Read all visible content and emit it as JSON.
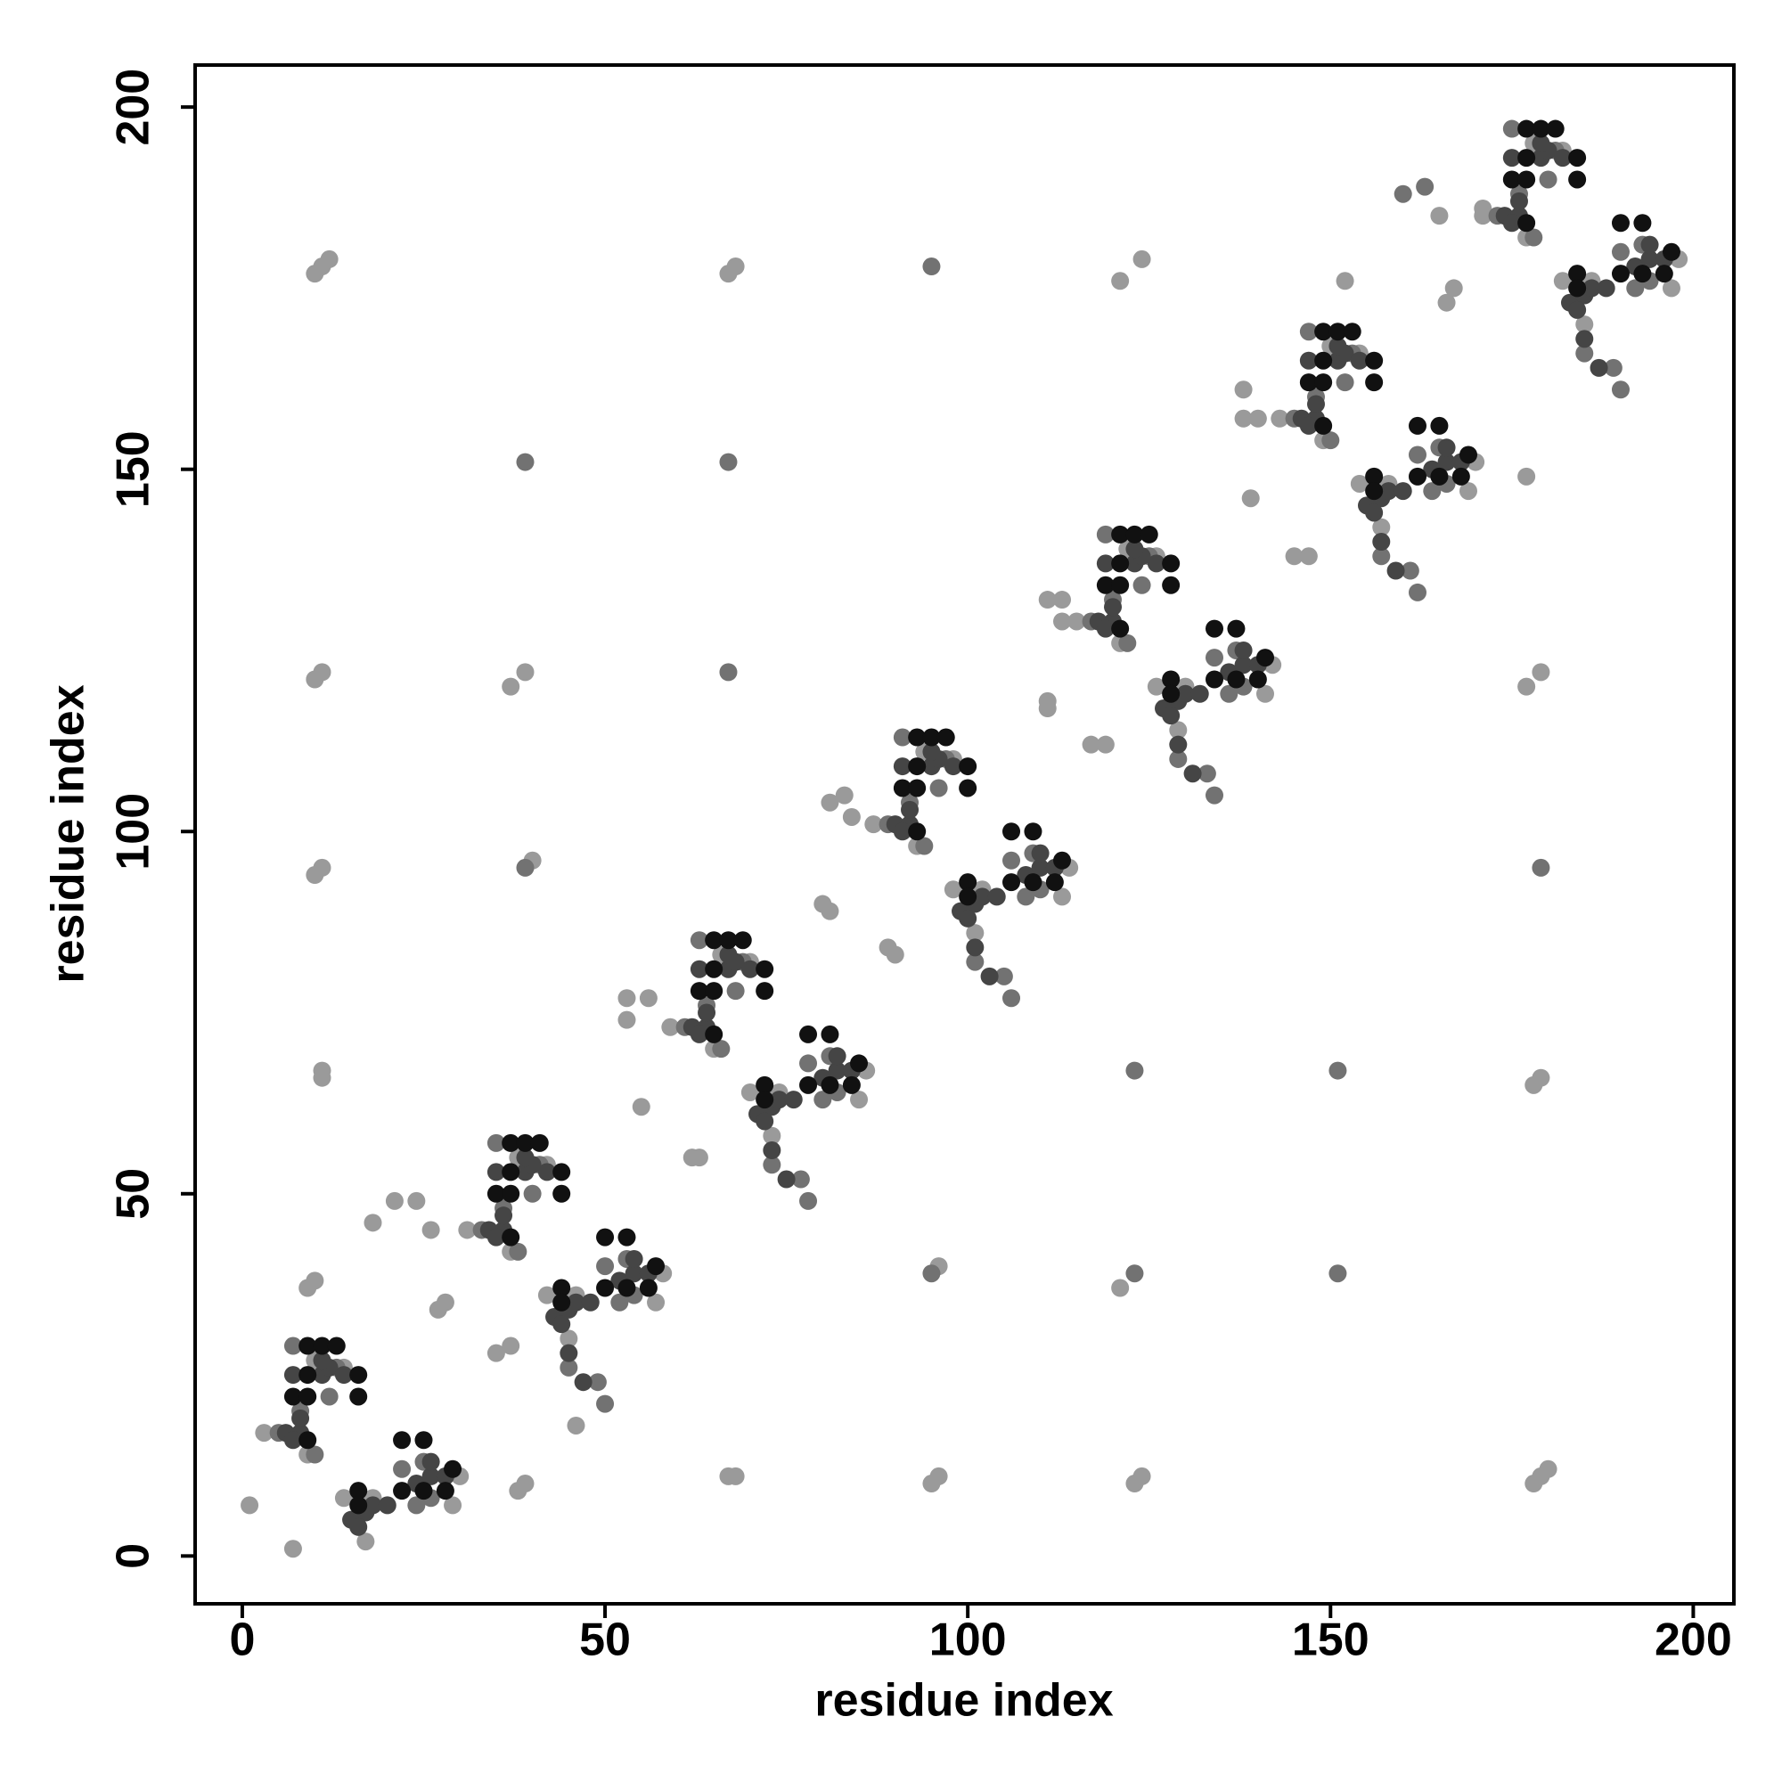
{
  "chart_data": {
    "type": "scatter",
    "xlabel": "residue index",
    "ylabel": "residue index",
    "xlim": [
      -6.5,
      205.6
    ],
    "ylim": [
      -6.6,
      205.8
    ],
    "xticks": [
      0,
      50,
      100,
      150,
      200
    ],
    "yticks": [
      0,
      50,
      100,
      150,
      200
    ],
    "series": [
      {
        "color": "#9a9a9a",
        "x": [
          3,
          9,
          10,
          14,
          31,
          37,
          38,
          42,
          59,
          65,
          66,
          70,
          87,
          93,
          94,
          98,
          115,
          121,
          122,
          126,
          143,
          149,
          150,
          154,
          171,
          177,
          178,
          182,
          14,
          17,
          18,
          29,
          30,
          42,
          45,
          46,
          57,
          58,
          70,
          73,
          74,
          85,
          86,
          98,
          101,
          102,
          113,
          114,
          126,
          129,
          130,
          141,
          142,
          154,
          157,
          158,
          169,
          170,
          182,
          185,
          186,
          197,
          198,
          46,
          1,
          7,
          9,
          10,
          11,
          12,
          10,
          67,
          68,
          121,
          124,
          11,
          10,
          37,
          39,
          10,
          11,
          40,
          11,
          11,
          179,
          178,
          96,
          121,
          67,
          68,
          95,
          96,
          123,
          124,
          178,
          179,
          180,
          177,
          177,
          179,
          152,
          38,
          39,
          35,
          37,
          27,
          28,
          21,
          18,
          24,
          26,
          55,
          53,
          56,
          53,
          62,
          63,
          83,
          81,
          84,
          80,
          81,
          89,
          90,
          111,
          113,
          113,
          117,
          119,
          111,
          111,
          138,
          138,
          140,
          139,
          145,
          147,
          166,
          167,
          165,
          171
        ],
        "values": [
          17,
          14,
          27,
          26,
          45,
          42,
          55,
          54,
          73,
          70,
          83,
          82,
          101,
          98,
          111,
          110,
          129,
          126,
          139,
          138,
          157,
          154,
          167,
          166,
          185,
          182,
          195,
          194,
          8,
          2,
          8,
          7,
          11,
          36,
          30,
          36,
          35,
          39,
          64,
          58,
          64,
          63,
          67,
          92,
          86,
          92,
          91,
          95,
          120,
          114,
          120,
          119,
          123,
          148,
          142,
          148,
          147,
          151,
          176,
          170,
          176,
          175,
          179,
          18,
          7,
          1,
          37,
          38,
          178,
          179,
          177,
          177,
          178,
          176,
          179,
          122,
          121,
          120,
          122,
          94,
          95,
          96,
          67,
          66,
          66,
          65,
          40,
          37,
          11,
          11,
          10,
          11,
          10,
          11,
          10,
          11,
          12,
          149,
          120,
          122,
          176,
          9,
          10,
          28,
          29,
          34,
          35,
          49,
          46,
          49,
          45,
          62,
          77,
          77,
          74,
          55,
          55,
          105,
          104,
          102,
          90,
          89,
          84,
          83,
          132,
          132,
          129,
          112,
          112,
          118,
          117,
          161,
          157,
          157,
          146,
          138,
          138,
          173,
          175,
          185,
          186
        ]
      },
      {
        "color": "#727272",
        "x": [
          5,
          10,
          7,
          12,
          13,
          8,
          33,
          38,
          35,
          40,
          41,
          36,
          61,
          66,
          63,
          68,
          69,
          64,
          89,
          94,
          91,
          96,
          97,
          92,
          117,
          122,
          119,
          124,
          125,
          120,
          145,
          150,
          147,
          152,
          153,
          148,
          173,
          178,
          175,
          180,
          181,
          176,
          22,
          25,
          26,
          24,
          50,
          53,
          54,
          52,
          78,
          81,
          82,
          80,
          106,
          109,
          110,
          108,
          134,
          137,
          138,
          136,
          162,
          165,
          166,
          164,
          190,
          193,
          194,
          192,
          45,
          49,
          50,
          73,
          77,
          78,
          101,
          105,
          106,
          129,
          133,
          134,
          157,
          161,
          162,
          185,
          189,
          190,
          95,
          39,
          67,
          67,
          39,
          123,
          151,
          95,
          123,
          151,
          179,
          163,
          160
        ],
        "values": [
          17,
          14,
          29,
          22,
          26,
          20,
          45,
          42,
          57,
          50,
          54,
          48,
          73,
          70,
          85,
          78,
          82,
          76,
          101,
          98,
          113,
          106,
          110,
          104,
          129,
          126,
          141,
          134,
          138,
          132,
          157,
          154,
          169,
          162,
          166,
          160,
          185,
          182,
          197,
          190,
          194,
          188,
          12,
          13,
          8,
          7,
          40,
          41,
          36,
          35,
          68,
          69,
          64,
          63,
          96,
          97,
          92,
          91,
          124,
          125,
          120,
          119,
          152,
          153,
          148,
          147,
          180,
          181,
          176,
          175,
          26,
          24,
          21,
          54,
          52,
          49,
          82,
          80,
          77,
          110,
          108,
          105,
          138,
          136,
          133,
          166,
          164,
          161,
          178,
          151,
          151,
          122,
          95,
          67,
          67,
          39,
          39,
          39,
          95,
          189,
          188
        ]
      },
      {
        "color": "#454545",
        "x": [
          6,
          8,
          8,
          7,
          7,
          11,
          12,
          14,
          11,
          34,
          36,
          36,
          35,
          35,
          39,
          40,
          42,
          39,
          62,
          64,
          64,
          63,
          63,
          67,
          68,
          70,
          67,
          90,
          92,
          92,
          91,
          91,
          95,
          96,
          98,
          95,
          118,
          120,
          120,
          119,
          119,
          123,
          124,
          126,
          123,
          146,
          148,
          148,
          147,
          147,
          151,
          152,
          154,
          151,
          174,
          176,
          176,
          175,
          175,
          179,
          180,
          182,
          179,
          15,
          17,
          18,
          20,
          24,
          26,
          28,
          26,
          16,
          43,
          45,
          46,
          48,
          52,
          54,
          56,
          54,
          44,
          71,
          73,
          74,
          76,
          80,
          82,
          84,
          82,
          72,
          99,
          101,
          102,
          104,
          108,
          110,
          112,
          110,
          100,
          127,
          129,
          130,
          132,
          136,
          138,
          140,
          138,
          128,
          155,
          157,
          158,
          160,
          164,
          166,
          168,
          166,
          156,
          183,
          185,
          186,
          188,
          192,
          194,
          196,
          194,
          184,
          45,
          47,
          73,
          75,
          101,
          103,
          129,
          131,
          157,
          159,
          185,
          187
        ],
        "values": [
          17,
          17,
          19,
          16,
          25,
          25,
          26,
          25,
          27,
          45,
          45,
          47,
          44,
          53,
          53,
          54,
          53,
          55,
          73,
          73,
          75,
          72,
          81,
          81,
          82,
          81,
          83,
          101,
          101,
          103,
          100,
          109,
          109,
          110,
          109,
          111,
          129,
          129,
          131,
          128,
          137,
          137,
          138,
          137,
          139,
          157,
          157,
          159,
          156,
          165,
          165,
          166,
          165,
          167,
          185,
          185,
          187,
          184,
          193,
          193,
          194,
          193,
          195,
          5,
          6,
          7,
          7,
          10,
          11,
          11,
          13,
          4,
          33,
          34,
          35,
          35,
          38,
          39,
          39,
          41,
          32,
          61,
          62,
          63,
          63,
          66,
          67,
          67,
          69,
          60,
          89,
          90,
          91,
          91,
          94,
          95,
          95,
          97,
          88,
          117,
          118,
          119,
          119,
          122,
          123,
          123,
          125,
          116,
          145,
          146,
          147,
          147,
          150,
          151,
          151,
          153,
          144,
          173,
          174,
          175,
          175,
          178,
          179,
          179,
          181,
          172,
          28,
          24,
          56,
          52,
          84,
          80,
          112,
          108,
          140,
          136,
          168,
          164
        ]
      },
      {
        "color": "#111111",
        "x": [
          9,
          7,
          9,
          9,
          9,
          11,
          13,
          16,
          16,
          37,
          35,
          37,
          37,
          37,
          39,
          41,
          44,
          44,
          65,
          63,
          65,
          65,
          65,
          67,
          69,
          72,
          72,
          93,
          91,
          93,
          93,
          93,
          95,
          97,
          100,
          100,
          121,
          119,
          121,
          121,
          121,
          123,
          125,
          128,
          128,
          149,
          147,
          149,
          149,
          149,
          151,
          153,
          156,
          156,
          177,
          175,
          177,
          177,
          177,
          179,
          181,
          184,
          184,
          22,
          25,
          22,
          25,
          28,
          29,
          16,
          16,
          50,
          53,
          50,
          53,
          56,
          57,
          44,
          44,
          78,
          81,
          78,
          81,
          84,
          85,
          72,
          72,
          106,
          109,
          106,
          109,
          112,
          113,
          100,
          100,
          134,
          137,
          134,
          137,
          140,
          141,
          128,
          128,
          162,
          165,
          162,
          165,
          168,
          169,
          156,
          156,
          190,
          193,
          190,
          193,
          196,
          197,
          184,
          184
        ],
        "values": [
          16,
          22,
          22,
          25,
          29,
          29,
          29,
          25,
          22,
          44,
          50,
          50,
          53,
          57,
          57,
          57,
          53,
          50,
          72,
          78,
          78,
          81,
          85,
          85,
          85,
          81,
          78,
          100,
          106,
          106,
          109,
          113,
          113,
          113,
          109,
          106,
          128,
          134,
          134,
          137,
          141,
          141,
          141,
          137,
          134,
          156,
          162,
          162,
          165,
          169,
          169,
          169,
          165,
          162,
          184,
          190,
          190,
          193,
          197,
          197,
          197,
          193,
          190,
          16,
          16,
          9,
          9,
          9,
          12,
          9,
          7,
          44,
          44,
          37,
          37,
          37,
          40,
          37,
          35,
          72,
          72,
          65,
          65,
          65,
          68,
          65,
          63,
          100,
          100,
          93,
          93,
          93,
          96,
          93,
          91,
          128,
          128,
          121,
          121,
          121,
          124,
          121,
          119,
          156,
          156,
          149,
          149,
          149,
          152,
          149,
          147,
          184,
          184,
          177,
          177,
          177,
          180,
          177,
          175
        ]
      }
    ]
  }
}
